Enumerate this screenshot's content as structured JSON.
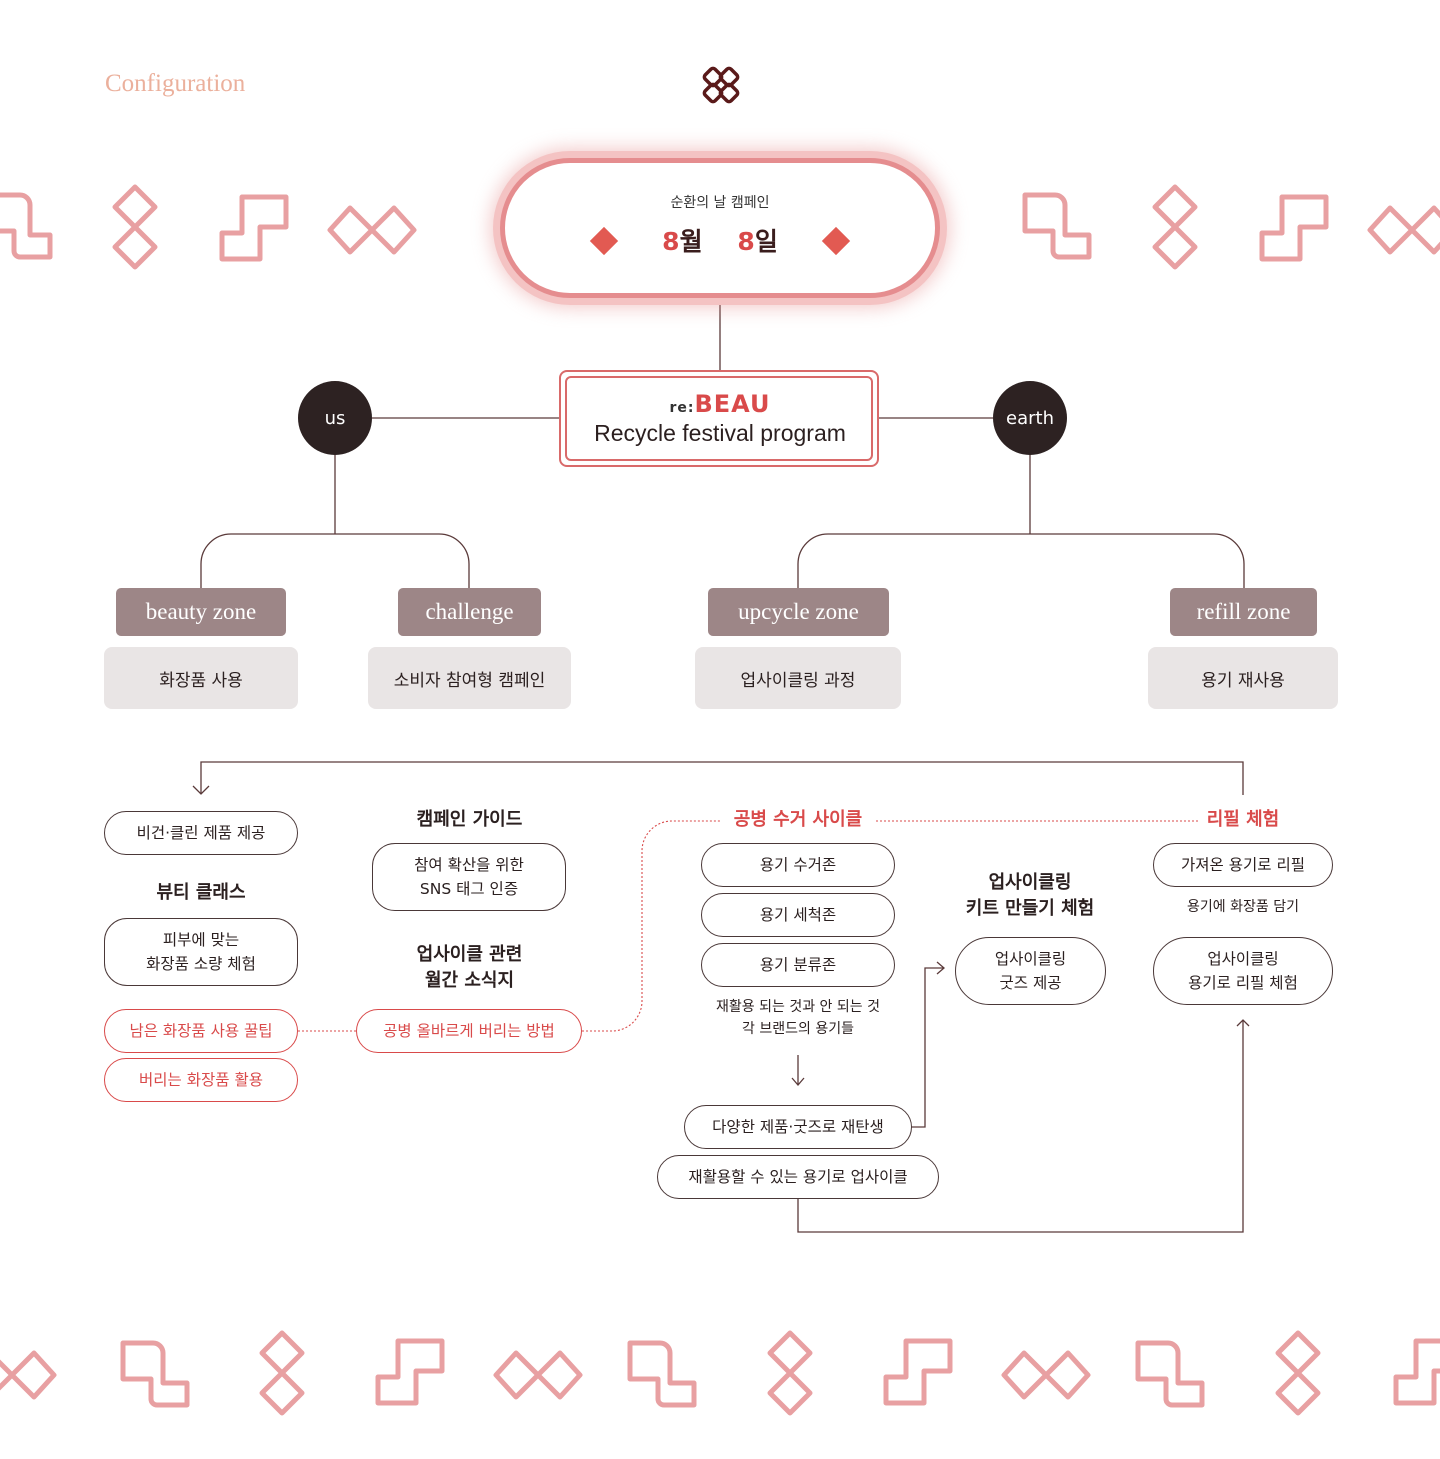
{
  "header": {
    "section_title": "Configuration",
    "logo_icon": "interlocked-chain-icon"
  },
  "campaign": {
    "label": "순환의 날 캠페인",
    "date_month": "월",
    "date_day": "일",
    "month_digit": "8",
    "day_digit": "8"
  },
  "program": {
    "logo_prefix": "re:",
    "logo_name": "BEAU",
    "title": "Recycle festival program"
  },
  "nodes": {
    "left_circle": "us",
    "right_circle": "earth"
  },
  "zones": [
    {
      "label": "beauty zone",
      "desc": "화장품 사용"
    },
    {
      "label": "challenge",
      "desc": "소비자 참여형 캠페인"
    },
    {
      "label": "upcycle zone",
      "desc": "업사이클링 과정"
    },
    {
      "label": "refill zone",
      "desc": "용기 재사용"
    }
  ],
  "beauty": {
    "chip1": "비건·클린 제품 제공",
    "heading": "뷰티 클래스",
    "chip2": "피부에 맞는\n화장품 소량 체험",
    "red1": "남은 화장품 사용 꿀팁",
    "red2": "버리는 화장품 활용"
  },
  "challenge": {
    "heading1": "캠페인 가이드",
    "chip1": "참여 확산을 위한\nSNS 태그 인증",
    "heading2": "업사이클 관련\n월간 소식지",
    "red1": "공병 올바르게 버리는 방법"
  },
  "upcycle": {
    "heading": "공병 수거 사이클",
    "steps": [
      "용기 수거존",
      "용기 세척존",
      "용기 분류존"
    ],
    "note": "재활용 되는 것과 안 되는 것\n각 브랜드의 용기들",
    "result1": "다양한 제품·굿즈로 재탄생",
    "result2": "재활용할 수 있는 용기로 업사이클",
    "kit_heading": "업사이클링\n키트 만들기 체험",
    "kit_chip": "업사이클링\n굿즈 제공"
  },
  "refill": {
    "heading": "리필 체험",
    "chip1": "가져온 용기로 리필",
    "note": "용기에 화장품 담기",
    "chip2": "업사이클링\n용기로 리필 체험"
  },
  "colors": {
    "accent": "#d94a4a",
    "pink": "#e58d8f",
    "zone": "#9d8687",
    "desc_bg": "#e9e5e5",
    "circle": "#2d2222",
    "title": "#ebb09c"
  }
}
